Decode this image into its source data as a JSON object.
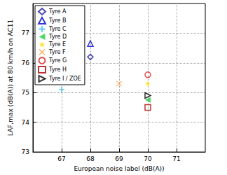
{
  "chart_data": {
    "type": "scatter",
    "x_label": "European noise label (dB(A))",
    "y_label": "LAF,max (dB(A)) at 80 km/h on AC11",
    "xlim": [
      66,
      72
    ],
    "xticks": [
      67,
      68,
      69,
      70,
      71
    ],
    "ylim": [
      73,
      78
    ],
    "yticks": [
      73,
      74,
      75,
      76,
      77
    ],
    "grid": true,
    "legend": "upper left",
    "series": [
      {
        "name": "Tyre A",
        "color": "#1c1c9c",
        "marker": "diamond",
        "x": [
          68
        ],
        "values": [
          76.2
        ]
      },
      {
        "name": "Tyre B",
        "color": "#0000cc",
        "marker": "triangle",
        "x": [
          68
        ],
        "values": [
          76.65
        ]
      },
      {
        "name": "Tyre C",
        "color": "#33bbee",
        "marker": "plus",
        "x": [
          67
        ],
        "values": [
          75.1
        ]
      },
      {
        "name": "Tyre D",
        "color": "#22cc44",
        "marker": "triangle-left",
        "x": [
          70
        ],
        "values": [
          74.75
        ]
      },
      {
        "name": "Tyre E",
        "color": "#ffdd00",
        "marker": "star",
        "x": [
          70
        ],
        "values": [
          75.3
        ]
      },
      {
        "name": "Tyre F",
        "color": "#ff9933",
        "marker": "x",
        "x": [
          69
        ],
        "values": [
          75.3
        ]
      },
      {
        "name": "Tyre G",
        "color": "#dd2222",
        "marker": "circle",
        "x": [
          70
        ],
        "values": [
          75.6
        ]
      },
      {
        "name": "Tyre H",
        "color": "#aa0000",
        "marker": "square",
        "x": [
          70
        ],
        "values": [
          74.5
        ]
      },
      {
        "name": "Tyre I / ZOE",
        "color": "#000000",
        "marker": "triangle-right",
        "x": [
          70
        ],
        "values": [
          74.9
        ]
      }
    ]
  }
}
